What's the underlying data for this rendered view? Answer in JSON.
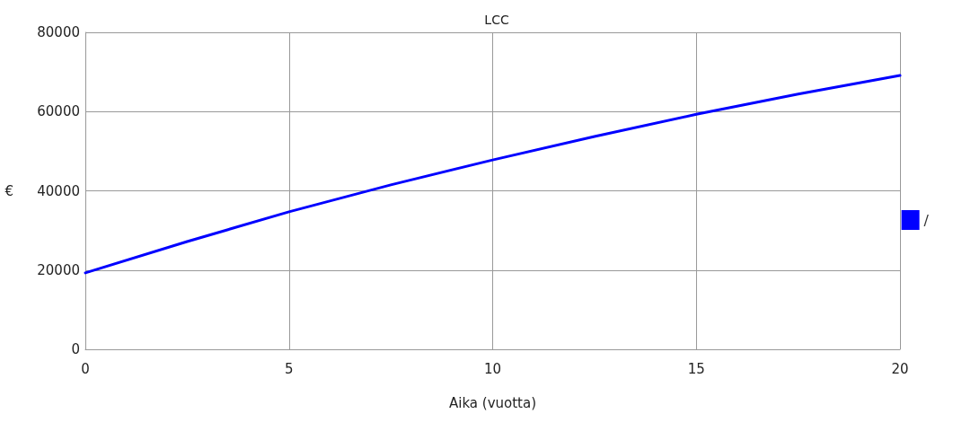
{
  "chart_data": {
    "type": "line",
    "title": "LCC",
    "xlabel": "Aika (vuotta)",
    "ylabel": "€",
    "x": [
      0,
      2.5,
      5,
      7.5,
      10,
      12.5,
      15,
      17.5,
      20
    ],
    "series": [
      {
        "name": "/",
        "color": "#0000ff",
        "values": [
          19300,
          27200,
          34700,
          41500,
          47800,
          53700,
          59300,
          64400,
          69100
        ]
      }
    ],
    "xlim": [
      0,
      20
    ],
    "xticks": [
      0,
      5,
      10,
      15,
      20
    ],
    "ylim": [
      0,
      80000
    ],
    "yticks": [
      0,
      20000,
      40000,
      60000,
      80000
    ],
    "grid": true,
    "legend": "right",
    "marker": "none",
    "line_style": "solid"
  }
}
